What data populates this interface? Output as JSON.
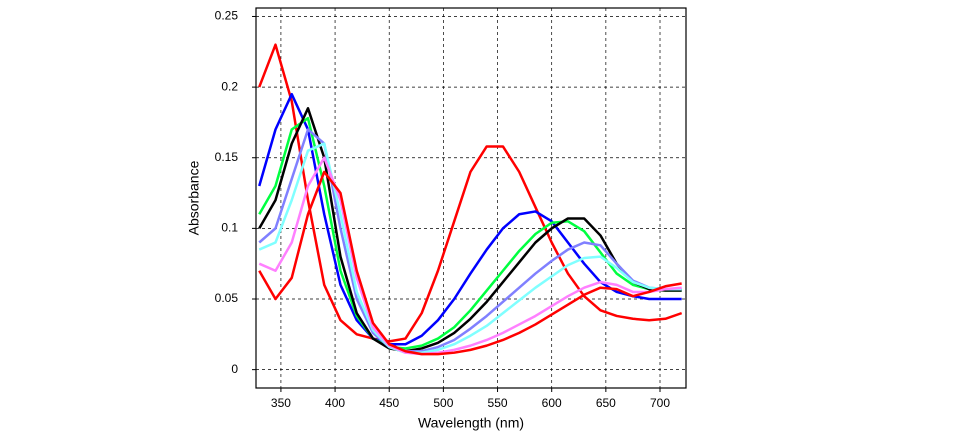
{
  "chart_data": {
    "type": "line",
    "x_label": "Wavelength (nm)",
    "y_label": "Absorbance",
    "x": [
      330,
      345,
      360,
      375,
      390,
      405,
      420,
      435,
      450,
      465,
      480,
      495,
      510,
      525,
      540,
      555,
      570,
      585,
      600,
      615,
      630,
      645,
      660,
      675,
      690,
      705,
      720
    ],
    "series": [
      {
        "color": "#ff0000",
        "values": [
          0.2,
          0.23,
          0.19,
          0.12,
          0.06,
          0.035,
          0.025,
          0.022,
          0.02,
          0.022,
          0.04,
          0.07,
          0.105,
          0.14,
          0.158,
          0.158,
          0.14,
          0.115,
          0.09,
          0.068,
          0.052,
          0.042,
          0.038,
          0.036,
          0.035,
          0.036,
          0.04
        ]
      },
      {
        "color": "#0000ff",
        "values": [
          0.13,
          0.17,
          0.195,
          0.17,
          0.11,
          0.06,
          0.035,
          0.022,
          0.018,
          0.018,
          0.024,
          0.035,
          0.05,
          0.068,
          0.085,
          0.1,
          0.11,
          0.112,
          0.105,
          0.09,
          0.075,
          0.062,
          0.055,
          0.052,
          0.05,
          0.05,
          0.05
        ]
      },
      {
        "color": "#00ff40",
        "values": [
          0.11,
          0.13,
          0.17,
          0.178,
          0.13,
          0.07,
          0.038,
          0.022,
          0.016,
          0.015,
          0.017,
          0.022,
          0.03,
          0.042,
          0.056,
          0.07,
          0.084,
          0.096,
          0.104,
          0.105,
          0.098,
          0.083,
          0.068,
          0.06,
          0.057,
          0.056,
          0.056
        ]
      },
      {
        "color": "#000000",
        "values": [
          0.1,
          0.12,
          0.16,
          0.185,
          0.15,
          0.08,
          0.04,
          0.022,
          0.015,
          0.013,
          0.015,
          0.019,
          0.026,
          0.036,
          0.048,
          0.062,
          0.076,
          0.09,
          0.1,
          0.107,
          0.107,
          0.095,
          0.075,
          0.062,
          0.057,
          0.056,
          0.056
        ]
      },
      {
        "color": "#8080ff",
        "values": [
          0.09,
          0.1,
          0.135,
          0.17,
          0.16,
          0.1,
          0.05,
          0.026,
          0.016,
          0.013,
          0.013,
          0.016,
          0.021,
          0.029,
          0.038,
          0.048,
          0.058,
          0.068,
          0.077,
          0.085,
          0.09,
          0.088,
          0.075,
          0.063,
          0.058,
          0.057,
          0.057
        ]
      },
      {
        "color": "#80ffff",
        "values": [
          0.085,
          0.09,
          0.12,
          0.155,
          0.16,
          0.11,
          0.055,
          0.028,
          0.016,
          0.012,
          0.012,
          0.014,
          0.018,
          0.024,
          0.031,
          0.04,
          0.049,
          0.058,
          0.066,
          0.074,
          0.079,
          0.08,
          0.072,
          0.062,
          0.058,
          0.057,
          0.057
        ]
      },
      {
        "color": "#ff80ff",
        "values": [
          0.075,
          0.07,
          0.09,
          0.13,
          0.15,
          0.12,
          0.065,
          0.03,
          0.017,
          0.012,
          0.011,
          0.012,
          0.014,
          0.017,
          0.021,
          0.026,
          0.032,
          0.038,
          0.045,
          0.052,
          0.058,
          0.062,
          0.06,
          0.055,
          0.055,
          0.057,
          0.058
        ]
      },
      {
        "color": "#ff0000",
        "values": [
          0.07,
          0.05,
          0.065,
          0.11,
          0.14,
          0.125,
          0.07,
          0.033,
          0.018,
          0.013,
          0.011,
          0.011,
          0.012,
          0.014,
          0.017,
          0.021,
          0.026,
          0.032,
          0.039,
          0.046,
          0.053,
          0.058,
          0.057,
          0.052,
          0.055,
          0.059,
          0.061
        ]
      }
    ],
    "xlim": [
      327,
      724
    ],
    "xticks": [
      350,
      400,
      450,
      500,
      550,
      600,
      650,
      700
    ],
    "ylim": [
      -0.013,
      0.256
    ],
    "yticks": [
      0,
      0.05,
      0.1,
      0.15,
      0.2,
      0.25
    ],
    "grid": true
  }
}
